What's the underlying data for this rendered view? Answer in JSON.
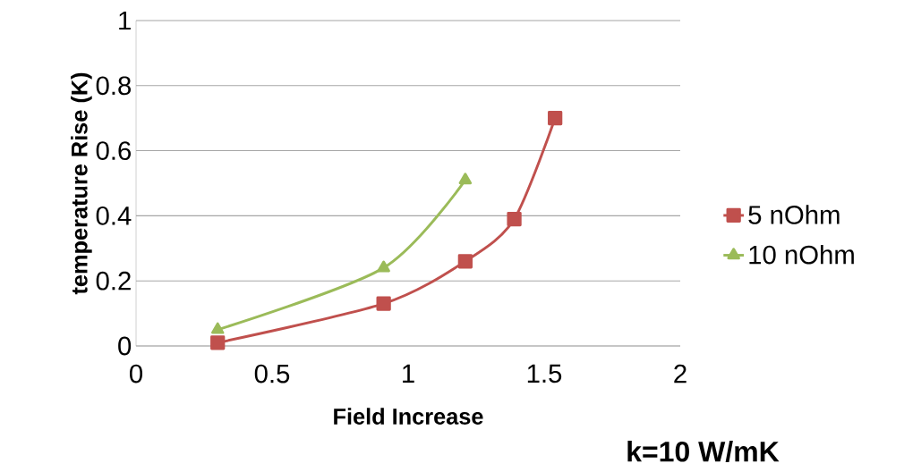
{
  "chart_data": {
    "type": "line",
    "xlabel": "Field Increase",
    "ylabel": "temperature Rise (K)",
    "annotations": [
      "k=10 W/mK"
    ],
    "series": [
      {
        "name": "5 nOhm",
        "color": "#c0504d",
        "marker": "square",
        "x": [
          0.3,
          0.91,
          1.21,
          1.39,
          1.54
        ],
        "values": [
          0.01,
          0.13,
          0.26,
          0.39,
          0.7
        ]
      },
      {
        "name": "10 nOhm",
        "color": "#9bbb59",
        "marker": "triangle",
        "x": [
          0.3,
          0.91,
          1.21
        ],
        "values": [
          0.05,
          0.24,
          0.51
        ]
      }
    ],
    "xlim": [
      0,
      2
    ],
    "ylim": [
      0,
      1
    ],
    "xticks": [
      0,
      0.5,
      1,
      1.5,
      2
    ],
    "yticks": [
      0,
      0.2,
      0.4,
      0.6,
      0.8,
      1
    ],
    "grid": "y",
    "legend": "right"
  }
}
